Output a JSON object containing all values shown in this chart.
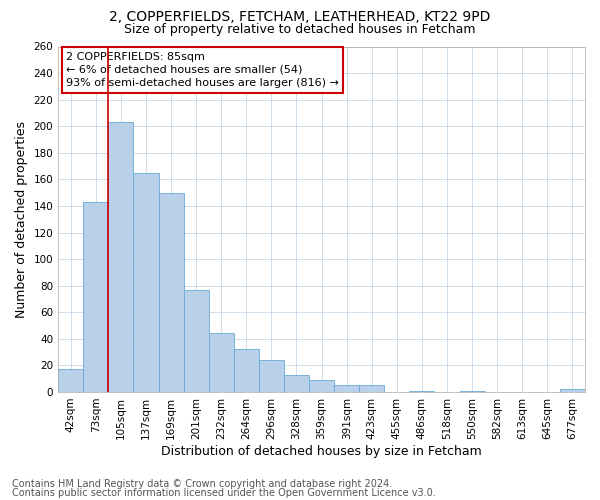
{
  "title": "2, COPPERFIELDS, FETCHAM, LEATHERHEAD, KT22 9PD",
  "subtitle": "Size of property relative to detached houses in Fetcham",
  "xlabel": "Distribution of detached houses by size in Fetcham",
  "ylabel": "Number of detached properties",
  "footnote1": "Contains HM Land Registry data © Crown copyright and database right 2024.",
  "footnote2": "Contains public sector information licensed under the Open Government Licence v3.0.",
  "bar_labels": [
    "42sqm",
    "73sqm",
    "105sqm",
    "137sqm",
    "169sqm",
    "201sqm",
    "232sqm",
    "264sqm",
    "296sqm",
    "328sqm",
    "359sqm",
    "391sqm",
    "423sqm",
    "455sqm",
    "486sqm",
    "518sqm",
    "550sqm",
    "582sqm",
    "613sqm",
    "645sqm",
    "677sqm"
  ],
  "bar_values": [
    17,
    143,
    203,
    165,
    150,
    77,
    44,
    32,
    24,
    13,
    9,
    5,
    5,
    0,
    1,
    0,
    1,
    0,
    0,
    0,
    2
  ],
  "bar_color": "#b8d0ea",
  "bar_edge_color": "#6aaad4",
  "ylim": [
    0,
    260
  ],
  "yticks": [
    0,
    20,
    40,
    60,
    80,
    100,
    120,
    140,
    160,
    180,
    200,
    220,
    240,
    260
  ],
  "annotation_text": "2 COPPERFIELDS: 85sqm\n← 6% of detached houses are smaller (54)\n93% of semi-detached houses are larger (816) →",
  "annotation_box_color": "#ffffff",
  "annotation_box_edge_color": "#cc0000",
  "red_line_bar_index": 1.5,
  "background_color": "#ffffff",
  "grid_color": "#c8d8e8",
  "title_fontsize": 10,
  "subtitle_fontsize": 9,
  "axis_label_fontsize": 9,
  "tick_fontsize": 7.5,
  "annotation_fontsize": 8,
  "footnote_fontsize": 7
}
